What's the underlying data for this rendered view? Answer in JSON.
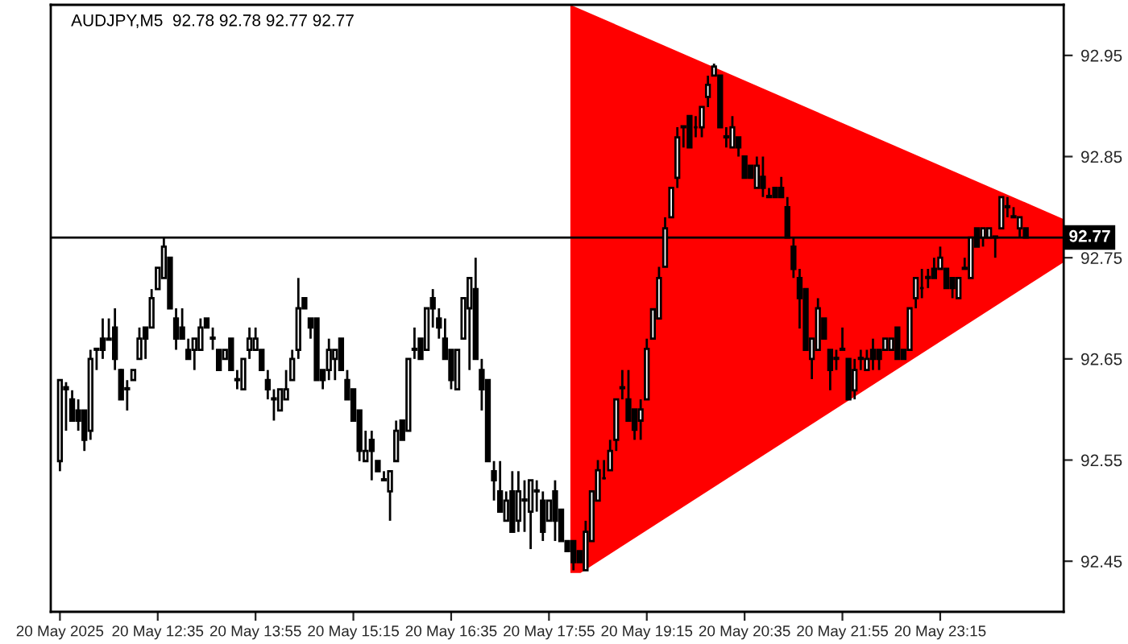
{
  "chart_data": {
    "type": "candlestick",
    "title": "AUDJPY,M5  92.78 92.78 92.77 92.77",
    "categories": [
      "20 May 2025",
      null,
      null,
      null,
      null,
      null,
      null,
      null,
      null,
      null,
      null,
      null,
      null,
      null,
      null,
      null,
      "20 May 12:35",
      null,
      null,
      null,
      null,
      null,
      null,
      null,
      null,
      null,
      null,
      null,
      null,
      null,
      null,
      null,
      "20 May 13:55",
      null,
      null,
      null,
      null,
      null,
      null,
      null,
      null,
      null,
      null,
      null,
      null,
      null,
      null,
      null,
      "20 May 15:15",
      null,
      null,
      null,
      null,
      null,
      null,
      null,
      null,
      null,
      null,
      null,
      null,
      null,
      null,
      null,
      "20 May 16:35",
      null,
      null,
      null,
      null,
      null,
      null,
      null,
      null,
      null,
      null,
      null,
      null,
      null,
      null,
      null,
      "20 May 17:55",
      null,
      null,
      null,
      null,
      null,
      null,
      null,
      null,
      null,
      null,
      null,
      null,
      null,
      null,
      null,
      "20 May 19:15",
      null,
      null,
      null,
      null,
      null,
      null,
      null,
      null,
      null,
      null,
      null,
      null,
      null,
      null,
      null,
      "20 May 20:35",
      null,
      null,
      null,
      null,
      null,
      null,
      null,
      null,
      null,
      null,
      null,
      null,
      null,
      null,
      null,
      "20 May 21:55",
      null,
      null,
      null,
      null,
      null,
      null,
      null,
      null,
      null,
      null,
      null,
      null,
      null,
      null,
      null,
      "20 May 23:15",
      null,
      null,
      null,
      null,
      null,
      null,
      null,
      null,
      null,
      null,
      null,
      null,
      null,
      null
    ],
    "ohlc": [
      [
        92.549,
        92.629,
        92.539,
        92.629
      ],
      [
        92.622,
        92.627,
        92.579,
        92.62
      ],
      [
        92.61,
        92.619,
        92.589,
        92.589
      ],
      [
        92.599,
        92.61,
        92.579,
        92.589
      ],
      [
        92.599,
        92.599,
        92.559,
        92.57
      ],
      [
        92.579,
        92.659,
        92.57,
        92.65
      ],
      [
        92.659,
        92.661,
        92.639,
        92.66
      ],
      [
        92.67,
        92.69,
        92.65,
        92.659
      ],
      [
        92.669,
        92.69,
        92.669,
        92.67
      ],
      [
        92.681,
        92.7,
        92.639,
        92.65
      ],
      [
        92.639,
        92.64,
        92.61,
        92.61
      ],
      [
        92.62,
        92.629,
        92.599,
        92.621
      ],
      [
        92.629,
        92.639,
        92.629,
        92.639
      ],
      [
        92.65,
        92.681,
        92.65,
        92.67
      ],
      [
        92.681,
        92.681,
        92.65,
        92.67
      ],
      [
        92.681,
        92.719,
        92.681,
        92.71
      ],
      [
        92.719,
        92.74,
        92.719,
        92.74
      ],
      [
        92.73,
        92.77,
        92.73,
        92.761
      ],
      [
        92.75,
        92.75,
        92.7,
        92.7
      ],
      [
        92.69,
        92.7,
        92.659,
        92.67
      ],
      [
        92.681,
        92.7,
        92.67,
        92.67
      ],
      [
        92.659,
        92.67,
        92.65,
        92.65
      ],
      [
        92.659,
        92.67,
        92.639,
        92.67
      ],
      [
        92.659,
        92.69,
        92.659,
        92.681
      ],
      [
        92.69,
        92.69,
        92.681,
        92.681
      ],
      [
        92.671,
        92.681,
        92.659,
        92.67
      ],
      [
        92.659,
        92.659,
        92.639,
        92.639
      ],
      [
        92.65,
        92.659,
        92.65,
        92.659
      ],
      [
        92.67,
        92.67,
        92.639,
        92.639
      ],
      [
        92.63,
        92.639,
        92.62,
        92.629
      ],
      [
        92.62,
        92.65,
        92.62,
        92.65
      ],
      [
        92.659,
        92.681,
        92.65,
        92.67
      ],
      [
        92.659,
        92.681,
        92.659,
        92.67
      ],
      [
        92.659,
        92.659,
        92.639,
        92.639
      ],
      [
        92.629,
        92.639,
        92.61,
        92.62
      ],
      [
        92.611,
        92.62,
        92.589,
        92.61
      ],
      [
        92.599,
        92.62,
        92.599,
        92.62
      ],
      [
        92.61,
        92.639,
        92.61,
        92.62
      ],
      [
        92.629,
        92.659,
        92.629,
        92.65
      ],
      [
        92.659,
        92.73,
        92.65,
        92.7
      ],
      [
        92.71,
        92.71,
        92.7,
        92.7
      ],
      [
        92.69,
        92.69,
        92.67,
        92.681
      ],
      [
        92.69,
        92.69,
        92.629,
        92.629
      ],
      [
        92.639,
        92.639,
        92.62,
        92.629
      ],
      [
        92.639,
        92.67,
        92.629,
        92.659
      ],
      [
        92.65,
        92.659,
        92.629,
        92.659
      ],
      [
        92.67,
        92.67,
        92.639,
        92.639
      ],
      [
        92.629,
        92.639,
        92.61,
        92.61
      ],
      [
        92.62,
        92.62,
        92.589,
        92.589
      ],
      [
        92.599,
        92.599,
        92.549,
        92.559
      ],
      [
        92.549,
        92.579,
        92.549,
        92.559
      ],
      [
        92.57,
        92.579,
        92.53,
        92.559
      ],
      [
        92.549,
        92.549,
        92.539,
        92.539
      ],
      [
        92.531,
        92.539,
        92.53,
        92.53
      ],
      [
        92.519,
        92.539,
        92.49,
        92.539
      ],
      [
        92.549,
        92.589,
        92.549,
        92.579
      ],
      [
        92.589,
        92.589,
        92.57,
        92.57
      ],
      [
        92.579,
        92.65,
        92.579,
        92.65
      ],
      [
        92.66,
        92.681,
        92.65,
        92.659
      ],
      [
        92.67,
        92.67,
        92.65,
        92.65
      ],
      [
        92.659,
        92.7,
        92.659,
        92.7
      ],
      [
        92.71,
        92.719,
        92.681,
        92.7
      ],
      [
        92.69,
        92.7,
        92.67,
        92.681
      ],
      [
        92.67,
        92.69,
        92.65,
        92.65
      ],
      [
        92.659,
        92.659,
        92.62,
        92.629
      ],
      [
        92.62,
        92.659,
        92.62,
        92.659
      ],
      [
        92.67,
        92.71,
        92.67,
        92.71
      ],
      [
        92.7,
        92.73,
        92.639,
        92.73
      ],
      [
        92.719,
        92.75,
        92.65,
        92.65
      ],
      [
        92.639,
        92.65,
        92.599,
        92.62
      ],
      [
        92.629,
        92.629,
        92.549,
        92.549
      ],
      [
        92.539,
        92.549,
        92.51,
        92.53
      ],
      [
        92.519,
        92.549,
        92.499,
        92.499
      ],
      [
        92.49,
        92.519,
        92.49,
        92.51
      ],
      [
        92.519,
        92.539,
        92.479,
        92.479
      ],
      [
        92.49,
        92.539,
        92.479,
        92.519
      ],
      [
        92.511,
        92.53,
        92.479,
        92.51
      ],
      [
        92.499,
        92.53,
        92.462,
        92.53
      ],
      [
        92.52,
        92.53,
        92.499,
        92.519
      ],
      [
        92.51,
        92.519,
        92.47,
        92.479
      ],
      [
        92.49,
        92.51,
        92.49,
        92.51
      ],
      [
        92.519,
        92.53,
        92.47,
        92.49
      ],
      [
        92.501,
        92.501,
        92.47,
        92.47
      ],
      [
        92.47,
        92.47,
        92.46,
        92.46
      ],
      [
        92.47,
        92.47,
        92.441,
        92.449
      ],
      [
        92.46,
        92.46,
        92.449,
        92.449
      ],
      [
        92.441,
        92.49,
        92.441,
        92.479
      ],
      [
        92.47,
        92.519,
        92.47,
        92.519
      ],
      [
        92.51,
        92.55,
        92.51,
        92.54
      ],
      [
        92.532,
        92.55,
        92.531,
        92.532
      ],
      [
        92.54,
        92.57,
        92.54,
        92.559
      ],
      [
        92.57,
        92.61,
        92.559,
        92.61
      ],
      [
        92.622,
        92.639,
        92.61,
        92.621
      ],
      [
        92.61,
        92.639,
        92.589,
        92.589
      ],
      [
        92.6,
        92.6,
        92.57,
        92.58
      ],
      [
        92.589,
        92.61,
        92.57,
        92.6
      ],
      [
        92.61,
        92.67,
        92.61,
        92.66
      ],
      [
        92.67,
        92.699,
        92.67,
        92.699
      ],
      [
        92.69,
        92.741,
        92.69,
        92.73
      ],
      [
        92.741,
        92.79,
        92.741,
        92.779
      ],
      [
        92.79,
        92.819,
        92.79,
        92.819
      ],
      [
        92.829,
        92.879,
        92.819,
        92.869
      ],
      [
        92.88,
        92.88,
        92.859,
        92.879
      ],
      [
        92.89,
        92.89,
        92.859,
        92.859
      ],
      [
        92.879,
        92.89,
        92.869,
        92.879
      ],
      [
        92.879,
        92.899,
        92.869,
        92.899
      ],
      [
        92.909,
        92.93,
        92.899,
        92.921
      ],
      [
        92.93,
        92.942,
        92.93,
        92.939
      ],
      [
        92.93,
        92.93,
        92.879,
        92.879
      ],
      [
        92.87,
        92.879,
        92.859,
        92.869
      ],
      [
        92.859,
        92.89,
        92.859,
        92.879
      ],
      [
        92.869,
        92.869,
        92.85,
        92.859
      ],
      [
        92.85,
        92.85,
        92.829,
        92.829
      ],
      [
        92.841,
        92.841,
        92.829,
        92.829
      ],
      [
        92.819,
        92.85,
        92.819,
        92.841
      ],
      [
        92.83,
        92.85,
        92.81,
        92.819
      ],
      [
        92.811,
        92.819,
        92.81,
        92.81
      ],
      [
        92.819,
        92.819,
        92.81,
        92.81
      ],
      [
        92.819,
        92.83,
        92.81,
        92.81
      ],
      [
        92.8,
        92.81,
        92.77,
        92.77
      ],
      [
        92.761,
        92.77,
        92.73,
        92.739
      ],
      [
        92.73,
        92.739,
        92.68,
        92.71
      ],
      [
        92.719,
        92.719,
        92.659,
        92.659
      ],
      [
        92.65,
        92.67,
        92.63,
        92.67
      ],
      [
        92.659,
        92.71,
        92.659,
        92.7
      ],
      [
        92.69,
        92.69,
        92.67,
        92.67
      ],
      [
        92.659,
        92.659,
        92.619,
        92.639
      ],
      [
        92.651,
        92.659,
        92.639,
        92.65
      ],
      [
        92.66,
        92.681,
        92.659,
        92.659
      ],
      [
        92.65,
        92.65,
        92.61,
        92.61
      ],
      [
        92.619,
        92.65,
        92.61,
        92.639
      ],
      [
        92.651,
        92.659,
        92.639,
        92.65
      ],
      [
        92.639,
        92.659,
        92.639,
        92.65
      ],
      [
        92.659,
        92.67,
        92.639,
        92.65
      ],
      [
        92.659,
        92.659,
        92.639,
        92.65
      ],
      [
        92.659,
        92.67,
        92.659,
        92.67
      ],
      [
        92.659,
        92.67,
        92.659,
        92.67
      ],
      [
        92.681,
        92.681,
        92.65,
        92.65
      ],
      [
        92.659,
        92.659,
        92.65,
        92.65
      ],
      [
        92.659,
        92.7,
        92.659,
        92.7
      ],
      [
        92.71,
        92.73,
        92.7,
        92.73
      ],
      [
        92.72,
        92.739,
        92.71,
        92.72
      ],
      [
        92.731,
        92.739,
        92.72,
        92.73
      ],
      [
        92.739,
        92.75,
        92.73,
        92.73
      ],
      [
        92.739,
        92.761,
        92.739,
        92.75
      ],
      [
        92.739,
        92.739,
        92.72,
        92.72
      ],
      [
        92.73,
        92.73,
        92.71,
        92.72
      ],
      [
        92.71,
        92.73,
        92.71,
        92.73
      ],
      [
        92.74,
        92.75,
        92.739,
        92.739
      ],
      [
        92.73,
        92.77,
        92.73,
        92.77
      ],
      [
        92.779,
        92.779,
        92.761,
        92.761
      ],
      [
        92.77,
        92.779,
        92.761,
        92.779
      ],
      [
        92.77,
        92.779,
        92.77,
        92.779
      ],
      [
        92.771,
        92.771,
        92.75,
        92.77
      ],
      [
        92.779,
        92.81,
        92.779,
        92.81
      ],
      [
        92.801,
        92.81,
        92.79,
        92.8
      ],
      [
        92.791,
        92.8,
        92.79,
        92.79
      ],
      [
        92.779,
        92.79,
        92.77,
        92.79
      ],
      [
        92.779,
        92.779,
        92.77,
        92.77
      ]
    ],
    "ylim": [
      92.4,
      93.0
    ],
    "yticks": [
      92.45,
      92.55,
      92.65,
      92.75,
      92.85,
      92.95
    ],
    "ref_lines": [
      {
        "axis": "y",
        "value": 92.77,
        "label": "92.77",
        "color": "#000000"
      }
    ],
    "grid": false,
    "legend": false
  }
}
